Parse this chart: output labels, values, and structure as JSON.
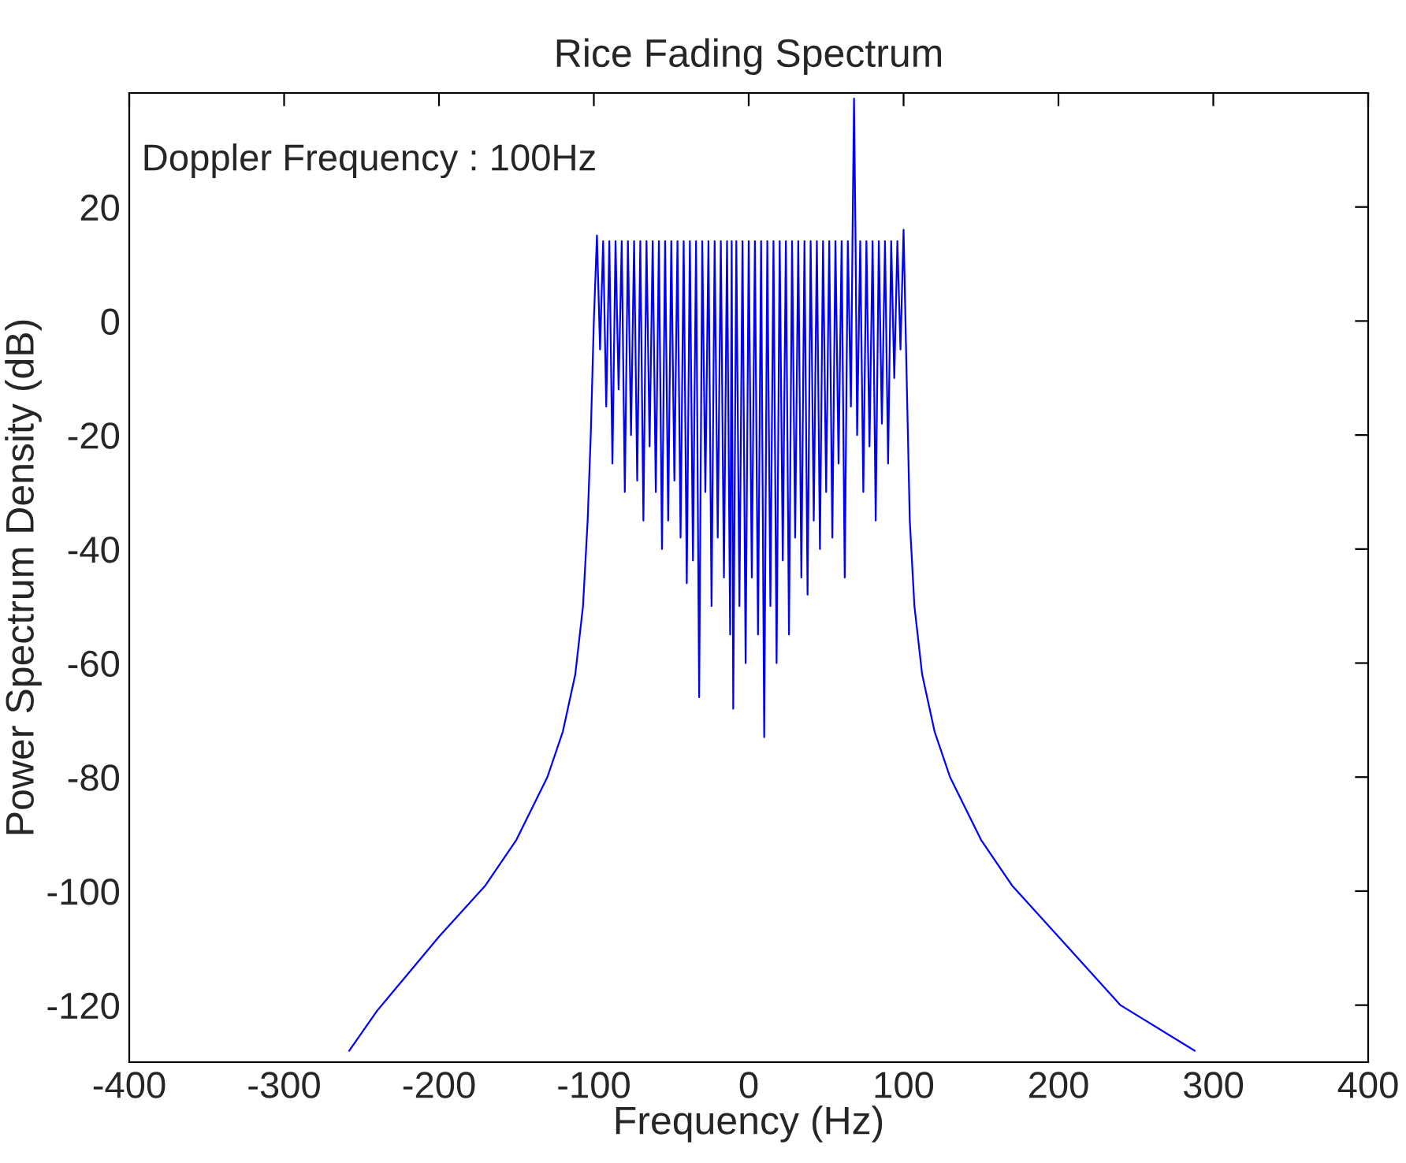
{
  "chart_data": {
    "type": "line",
    "title": "Rice Fading Spectrum",
    "xlabel": "Frequency (Hz)",
    "ylabel": "Power Spectrum Density (dB)",
    "annotations": [
      "Doppler Frequency : 100Hz"
    ],
    "xlim": [
      -400,
      400
    ],
    "xticks": [
      -400,
      -300,
      -200,
      -100,
      0,
      100,
      200,
      300,
      400
    ],
    "ylim": [
      -130,
      40
    ],
    "yticks": [
      -120,
      -100,
      -80,
      -60,
      -40,
      -20,
      0,
      20
    ],
    "grid": false,
    "legend": false,
    "marker": "none",
    "line_style": "solid",
    "series": [
      {
        "color": "#0000ff",
        "x": [
          -258,
          -240,
          -200,
          -170,
          -150,
          -130,
          -120,
          -112,
          -107,
          -104,
          -102,
          -100,
          -98,
          -96,
          -94,
          -92,
          -90,
          -88,
          -86,
          -84,
          -82,
          -80,
          -78,
          -76,
          -74,
          -72,
          -70,
          -68,
          -66,
          -64,
          -62,
          -60,
          -58,
          -56,
          -54,
          -52,
          -50,
          -48,
          -46,
          -44,
          -42,
          -40,
          -38,
          -36,
          -34,
          -32,
          -30,
          -28,
          -26,
          -24,
          -22,
          -20,
          -18,
          -16,
          -14,
          -12,
          -11,
          -10,
          -8,
          -6,
          -4,
          -2,
          0,
          2,
          4,
          6,
          8,
          10,
          12,
          14,
          16,
          18,
          20,
          22,
          24,
          26,
          28,
          30,
          32,
          34,
          36,
          38,
          40,
          42,
          44,
          46,
          48,
          50,
          52,
          54,
          56,
          58,
          60,
          62,
          64,
          66,
          67,
          68,
          69,
          70,
          72,
          74,
          76,
          78,
          80,
          82,
          84,
          86,
          88,
          90,
          92,
          94,
          96,
          98,
          100,
          102,
          104,
          107,
          112,
          120,
          130,
          150,
          170,
          200,
          240,
          288
        ],
        "values": [
          -128,
          -121,
          -108,
          -99,
          -91,
          -80,
          -72,
          -62,
          -50,
          -35,
          -20,
          0,
          15,
          -5,
          14,
          -15,
          14,
          -25,
          14,
          -12,
          14,
          -30,
          14,
          -20,
          14,
          -28,
          14,
          -35,
          14,
          -22,
          14,
          -30,
          14,
          -40,
          14,
          -35,
          14,
          -28,
          14,
          -38,
          14,
          -46,
          14,
          -42,
          14,
          -66,
          14,
          -30,
          14,
          -50,
          14,
          -38,
          14,
          -45,
          14,
          -55,
          14,
          -68,
          14,
          -50,
          14,
          -60,
          14,
          -45,
          14,
          -55,
          14,
          -73,
          14,
          -50,
          14,
          -60,
          14,
          -42,
          14,
          -55,
          14,
          -38,
          14,
          -45,
          14,
          -48,
          14,
          -35,
          14,
          -40,
          14,
          -30,
          14,
          -38,
          14,
          -25,
          14,
          -45,
          14,
          -15,
          14,
          39,
          14,
          -20,
          14,
          -30,
          14,
          -22,
          14,
          -35,
          14,
          -18,
          14,
          -25,
          14,
          -10,
          14,
          -5,
          16,
          -10,
          -35,
          -50,
          -62,
          -72,
          -80,
          -91,
          -99,
          -108,
          -120,
          -128
        ]
      }
    ]
  }
}
